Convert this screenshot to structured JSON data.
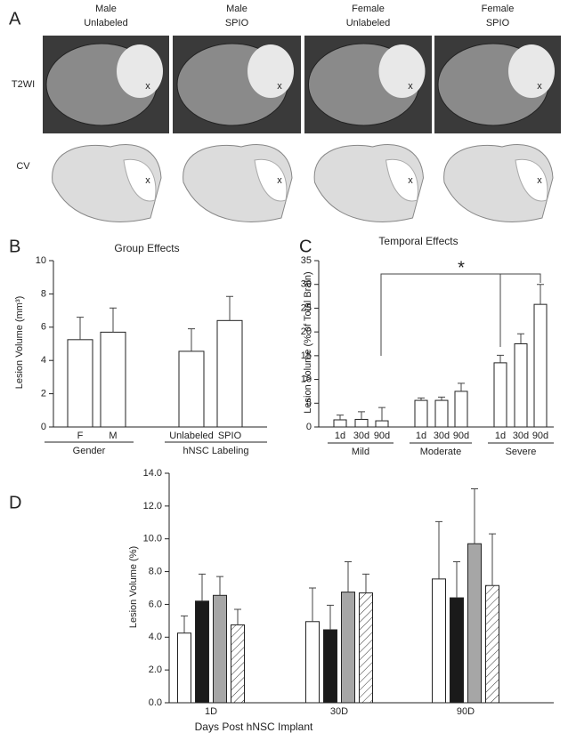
{
  "panel_a": {
    "panel": "A",
    "columns": [
      [
        "Male",
        "Unlabeled"
      ],
      [
        "Male",
        "SPIO"
      ],
      [
        "Female",
        "Unlabeled"
      ],
      [
        "Female",
        "SPIO"
      ]
    ],
    "rows": [
      "T2WI",
      "CV"
    ],
    "marker": "x"
  },
  "chart_data": [
    {
      "type": "bar",
      "panel": "B",
      "title": "Group Effects",
      "ylabel": "Lesion Volume (mm³)",
      "categories": [
        "F",
        "M",
        "Unlabeled",
        "SPIO"
      ],
      "groups": [
        "Gender",
        "hNSC Labeling"
      ],
      "values": [
        5.25,
        5.7,
        4.55,
        6.4
      ],
      "errors": [
        1.35,
        1.45,
        1.35,
        1.45
      ],
      "color": "#ffffff",
      "ylim": [
        0,
        10
      ],
      "yticks": [
        0,
        2,
        4,
        6,
        8,
        10
      ]
    },
    {
      "type": "bar",
      "panel": "C",
      "title": "Temporal Effects",
      "ylabel": "Lesion Volume (% of Total Brain)",
      "categories": [
        "1d",
        "30d",
        "90d",
        "1d",
        "30d",
        "90d",
        "1d",
        "30d",
        "90d"
      ],
      "groups": [
        "Mild",
        "Moderate",
        "Severe"
      ],
      "values": [
        1.5,
        1.6,
        1.3,
        5.6,
        5.6,
        7.5,
        13.5,
        17.5,
        25.8
      ],
      "errors": [
        1.0,
        1.6,
        2.8,
        0.5,
        0.7,
        1.7,
        1.6,
        2.1,
        4.2
      ],
      "color": "#ffffff",
      "significance": "*",
      "ylim": [
        0,
        35
      ],
      "yticks": [
        0,
        5,
        10,
        15,
        20,
        25,
        30,
        35
      ]
    },
    {
      "type": "grouped_bar",
      "panel": "D",
      "xlabel": "Days Post hNSC Implant",
      "ylabel": "Lesion Volume (%)",
      "categories": [
        "1D",
        "30D",
        "90D"
      ],
      "series": [
        {
          "color": "#ffffff",
          "values": [
            4.25,
            4.95,
            7.55
          ],
          "errors": [
            1.05,
            2.05,
            3.5
          ]
        },
        {
          "color": "#1a1a1a",
          "values": [
            6.2,
            4.45,
            6.4
          ],
          "errors": [
            1.65,
            1.5,
            2.2
          ]
        },
        {
          "color": "#a6a6a6",
          "values": [
            6.55,
            6.75,
            9.7
          ],
          "errors": [
            1.15,
            1.85,
            3.35
          ]
        },
        {
          "color": "#ffffff",
          "hatch": true,
          "values": [
            4.75,
            6.7,
            7.15
          ],
          "errors": [
            0.95,
            1.15,
            3.15
          ]
        }
      ],
      "ylim": [
        0,
        14
      ],
      "yticks": [
        {
          "value": 0,
          "label": "0.0"
        },
        {
          "value": 2,
          "label": "2.0"
        },
        {
          "value": 4,
          "label": "4.0"
        },
        {
          "value": 6,
          "label": "6.0"
        },
        {
          "value": 8,
          "label": "8.0"
        },
        {
          "value": 10,
          "label": "10.0"
        },
        {
          "value": 12,
          "label": "12.0"
        },
        {
          "value": 14,
          "label": "14.0"
        }
      ]
    }
  ]
}
